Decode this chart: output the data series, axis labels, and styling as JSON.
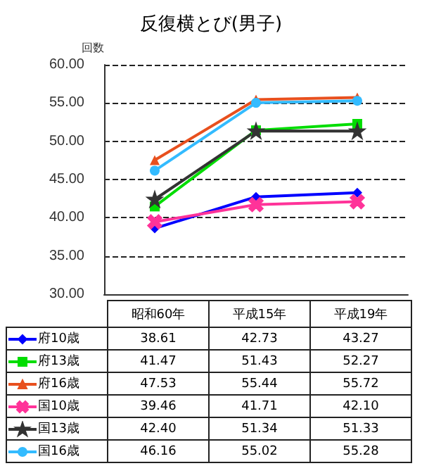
{
  "chart_data": {
    "type": "line",
    "title": "反復横とび(男子)",
    "ylabel": "回数",
    "categories": [
      "昭和60年",
      "平成15年",
      "平成19年"
    ],
    "series": [
      {
        "name": "府10歳",
        "color": "#0000ff",
        "marker": "diamond",
        "values": [
          38.61,
          42.73,
          43.27
        ],
        "value_labels": [
          "38.61",
          "42.73",
          "43.27"
        ]
      },
      {
        "name": "府13歳",
        "color": "#00dd00",
        "marker": "square",
        "values": [
          41.47,
          51.43,
          52.27
        ],
        "value_labels": [
          "41.47",
          "51.43",
          "52.27"
        ]
      },
      {
        "name": "府16歳",
        "color": "#e8501e",
        "marker": "triangle",
        "values": [
          47.53,
          55.44,
          55.72
        ],
        "value_labels": [
          "47.53",
          "55.44",
          "55.72"
        ]
      },
      {
        "name": "国10歳",
        "color": "#ff3399",
        "marker": "cross",
        "values": [
          39.46,
          41.71,
          42.1
        ],
        "value_labels": [
          "39.46",
          "41.71",
          "42.10"
        ]
      },
      {
        "name": "国13歳",
        "color": "#333333",
        "marker": "star",
        "values": [
          42.4,
          51.34,
          51.33
        ],
        "value_labels": [
          "42.40",
          "51.34",
          "51.33"
        ]
      },
      {
        "name": "国16歳",
        "color": "#33bbff",
        "marker": "circle",
        "values": [
          46.16,
          55.02,
          55.28
        ],
        "value_labels": [
          "46.16",
          "55.02",
          "55.28"
        ]
      }
    ],
    "ylim": [
      30,
      60
    ],
    "yticks": [
      {
        "value": 30,
        "label": "30.00"
      },
      {
        "value": 35,
        "label": "35.00"
      },
      {
        "value": 40,
        "label": "40.00"
      },
      {
        "value": 45,
        "label": "45.00"
      },
      {
        "value": 50,
        "label": "50.00"
      },
      {
        "value": 55,
        "label": "55.00"
      },
      {
        "value": 60,
        "label": "60.00"
      }
    ],
    "grid": "y",
    "legend": "bottom",
    "line_style": "solid"
  }
}
